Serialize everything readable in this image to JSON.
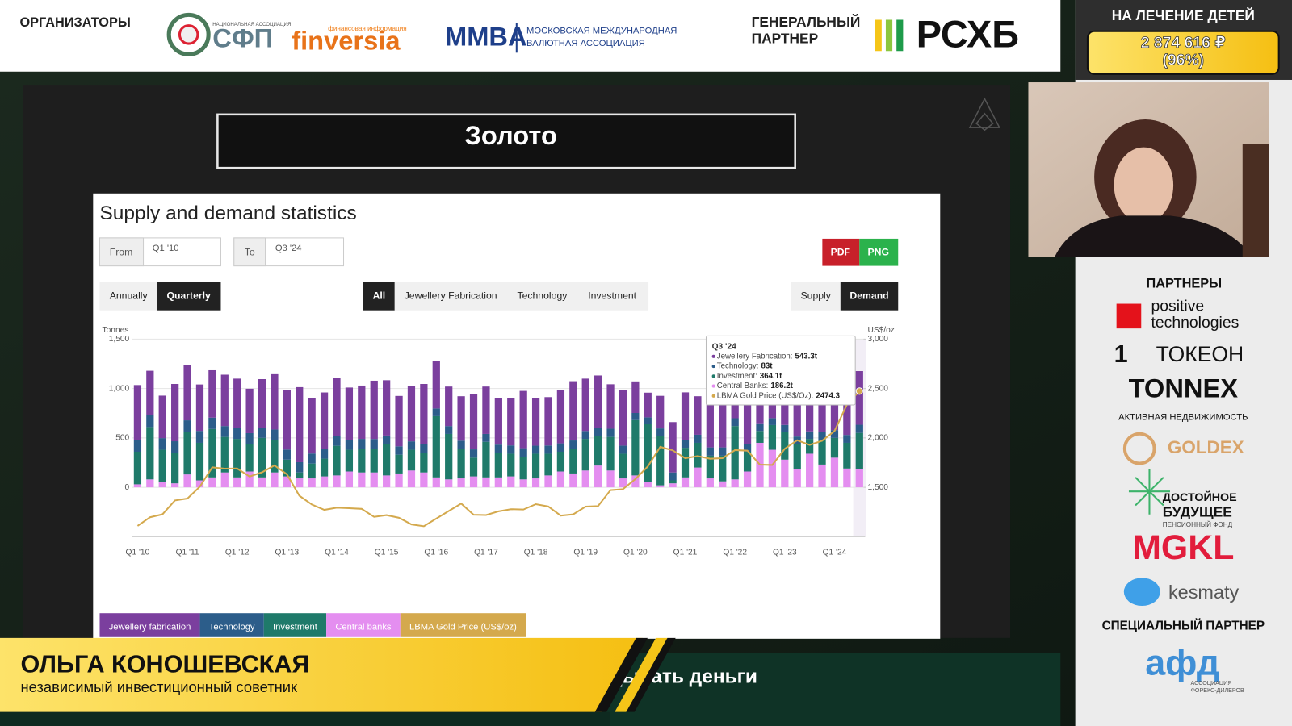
{
  "header": {
    "organizers": "ОРГАНИЗАТОРЫ",
    "sfp_small": "НАЦИОНАЛЬНАЯ АССОЦИАЦИЯ",
    "sfp": "СФП",
    "finversia_small": "финансовая информация",
    "finversia": "finversia",
    "mmva": "MMBA",
    "mmva_line1": "МОСКОВСКАЯ МЕЖДУНАРОДНАЯ",
    "mmva_line2": "ВАЛЮТНАЯ АССОЦИАЦИЯ",
    "partner_line1": "ГЕНЕРАЛЬНЫЙ",
    "partner_line2": "ПАРТНЕР",
    "rshb": "РСХБ"
  },
  "donation": {
    "label": "НА ЛЕЧЕНИЕ ДЕТЕЙ",
    "amount": "2 874 616 ₽",
    "percent": "(96%)"
  },
  "slide": {
    "title": "Золото",
    "heading": "Supply and demand statistics",
    "from_label": "From",
    "from_value": "Q1 '10",
    "to_label": "To",
    "to_value": "Q3 '24",
    "export": [
      "PDF",
      "PNG"
    ],
    "period": [
      "Annually",
      "Quarterly"
    ],
    "filters": [
      "All",
      "Jewellery Fabrication",
      "Technology",
      "Investment"
    ],
    "sides": [
      "Supply",
      "Demand"
    ],
    "tooltip": {
      "title": "Q3 '24",
      "lines": [
        {
          "label": "Jewellery Fabrication:",
          "value": "543.3t"
        },
        {
          "label": "Technology:",
          "value": "83t"
        },
        {
          "label": "Investment:",
          "value": "364.1t"
        },
        {
          "label": "Central Banks:",
          "value": "186.2t"
        },
        {
          "label": "LBMA Gold Price (US$/Oz):",
          "value": "2474.3"
        }
      ]
    }
  },
  "chart_data": {
    "type": "bar",
    "stacked": true,
    "y_label": "Tonnes",
    "y2_label": "US$/oz",
    "categories": [
      "Q1 '10",
      null,
      null,
      null,
      "Q1 '11",
      null,
      null,
      null,
      "Q1 '12",
      null,
      null,
      null,
      "Q1 '13",
      null,
      null,
      null,
      "Q1 '14",
      null,
      null,
      null,
      "Q1 '15",
      null,
      null,
      null,
      "Q1 '16",
      null,
      null,
      null,
      "Q1 '17",
      null,
      null,
      null,
      "Q1 '18",
      null,
      null,
      null,
      "Q1 '19",
      null,
      null,
      null,
      "Q1 '20",
      null,
      null,
      null,
      "Q1 '21",
      null,
      null,
      null,
      "Q1 '22",
      null,
      null,
      null,
      "Q1 '23",
      null,
      null,
      null,
      "Q1 '24",
      null,
      null
    ],
    "ylim": [
      -500,
      1500
    ],
    "yticks": [
      0,
      500,
      {
        "value": 1000,
        "label": "1,000"
      },
      {
        "value": 1500,
        "label": "1,500"
      }
    ],
    "y2lim": [
      1000,
      3000
    ],
    "y2ticks": [
      {
        "value": 1500,
        "label": "1,500"
      },
      {
        "value": 2000,
        "label": "2,000"
      },
      {
        "value": 2500,
        "label": "2,500"
      },
      {
        "value": 3000,
        "label": "3,000"
      }
    ],
    "grid": true,
    "series": [
      {
        "name": "Jewellery fabrication",
        "color": "#7b3f9e",
        "values": [
          560,
          450,
          430,
          580,
          560,
          470,
          480,
          520,
          500,
          450,
          490,
          560,
          600,
          760,
          560,
          570,
          590,
          530,
          540,
          590,
          560,
          510,
          560,
          610,
          480,
          400,
          450,
          560,
          480,
          470,
          480,
          580,
          480,
          490,
          540,
          600,
          530,
          530,
          450,
          560,
          320,
          250,
          330,
          510,
          480,
          390,
          470,
          610,
          490,
          480,
          530,
          600,
          480,
          480,
          520,
          580,
          480,
          390,
          543.3
        ]
      },
      {
        "name": "Technology",
        "color": "#2c5d8a",
        "values": [
          115,
          120,
          118,
          116,
          118,
          121,
          115,
          110,
          110,
          108,
          105,
          105,
          102,
          104,
          102,
          100,
          98,
          100,
          100,
          99,
          84,
          85,
          85,
          86,
          78,
          80,
          82,
          84,
          80,
          82,
          84,
          86,
          81,
          83,
          85,
          84,
          80,
          82,
          83,
          82,
          72,
          68,
          76,
          80,
          81,
          82,
          84,
          84,
          79,
          80,
          78,
          70,
          71,
          74,
          76,
          77,
          79,
          80,
          83
        ]
      },
      {
        "name": "Investment",
        "color": "#1f7a6a",
        "values": [
          330,
          530,
          330,
          310,
          430,
          380,
          490,
          360,
          390,
          280,
          400,
          330,
          170,
          60,
          150,
          180,
          300,
          220,
          240,
          240,
          320,
          190,
          210,
          200,
          620,
          460,
          300,
          190,
          360,
          250,
          230,
          230,
          250,
          220,
          200,
          250,
          320,
          300,
          340,
          250,
          560,
          590,
          500,
          30,
          300,
          250,
          230,
          260,
          540,
          200,
          120,
          250,
          280,
          260,
          150,
          250,
          200,
          260,
          364.1
        ]
      },
      {
        "name": "Central banks",
        "color": "#e48ef0",
        "values": [
          30,
          80,
          50,
          40,
          130,
          70,
          100,
          150,
          100,
          160,
          100,
          150,
          110,
          90,
          90,
          110,
          120,
          160,
          150,
          150,
          120,
          140,
          170,
          150,
          100,
          80,
          90,
          110,
          100,
          100,
          110,
          80,
          90,
          120,
          160,
          140,
          170,
          220,
          170,
          90,
          120,
          50,
          20,
          40,
          100,
          200,
          90,
          60,
          80,
          160,
          450,
          380,
          280,
          180,
          340,
          230,
          300,
          190,
          186.2
        ]
      },
      {
        "name": "LBMA Gold Price (US$/oz)",
        "color": "#d4a94d",
        "axis": "y2",
        "line": true,
        "values": [
          1109,
          1197,
          1227,
          1367,
          1386,
          1506,
          1702,
          1688,
          1691,
          1609,
          1652,
          1722,
          1632,
          1415,
          1326,
          1272,
          1293,
          1288,
          1282,
          1201,
          1218,
          1192,
          1124,
          1106,
          1183,
          1260,
          1335,
          1222,
          1219,
          1257,
          1278,
          1275,
          1329,
          1306,
          1213,
          1226,
          1304,
          1310,
          1472,
          1481,
          1583,
          1711,
          1909,
          1874,
          1794,
          1816,
          1789,
          1795,
          1877,
          1871,
          1729,
          1726,
          1890,
          1976,
          1929,
          1971,
          2070,
          2338,
          2474.3
        ]
      }
    ]
  },
  "sidebar": {
    "partners": "ПАРТНЕРЫ",
    "pt_line1": "positive",
    "pt_line2": "technologies",
    "tokeon": "ТОКЕОН",
    "tonnex": "TONNEX",
    "tonnex_sub": "АКТИВНАЯ НЕДВИЖИМОСТЬ",
    "goldex": "GOLDEX",
    "db_line1": "ДОСТОЙНОЕ",
    "db_line2": "БУДУЩЕЕ",
    "db_sub": "ПЕНСИОННЫЙ ФОНД",
    "mgkl": "MGKL",
    "kesmaty": "kesmaty",
    "special": "СПЕЦИАЛЬНЫЙ ПАРТНЕР",
    "afd": "афд",
    "afd_sub1": "АССОЦИАЦИЯ",
    "afd_sub2": "ФОРЕКС-ДИЛЕРОВ"
  },
  "lower_third": {
    "name": "ОЛЬГА КОНОШЕВСКАЯ",
    "role": "независимый инвестиционный советник",
    "ticker": "дывать деньги"
  }
}
